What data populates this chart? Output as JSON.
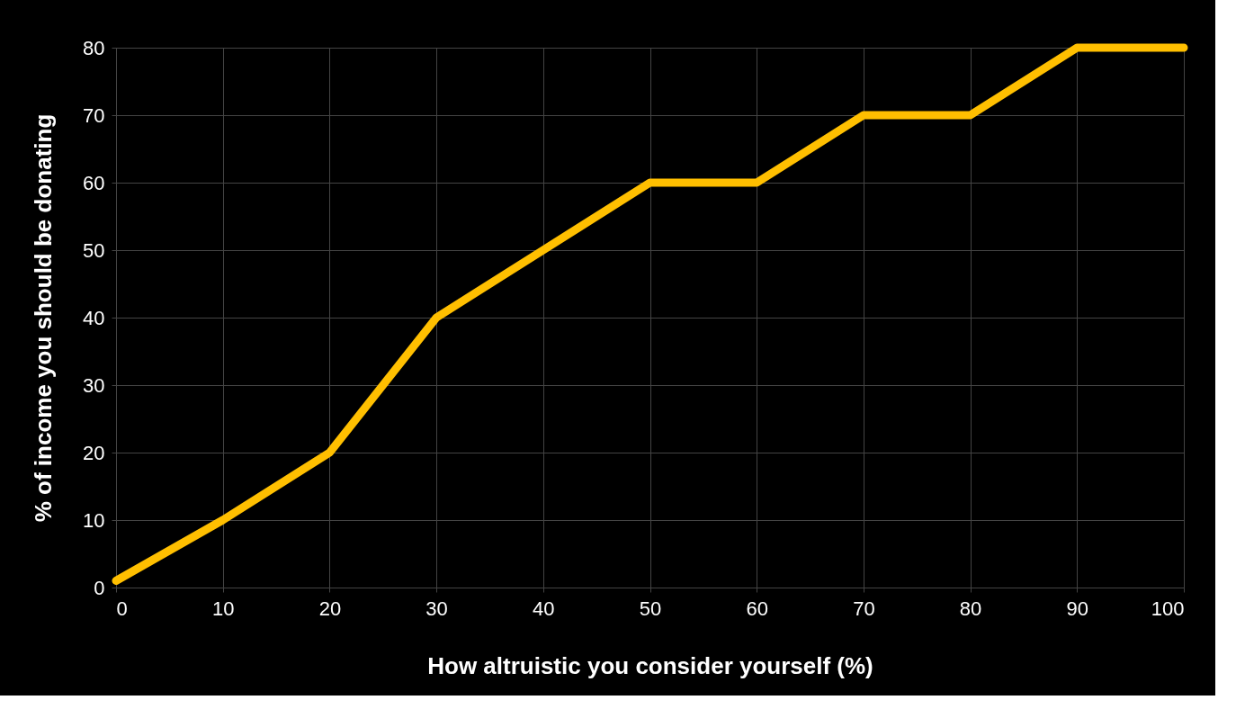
{
  "chart_data": {
    "type": "line",
    "xlabel": "How altruistic you consider yourself (%)",
    "ylabel": "% of income you should be donating",
    "x": [
      0,
      10,
      20,
      30,
      40,
      50,
      60,
      70,
      80,
      90,
      100
    ],
    "series": [
      {
        "color": "#ffbf00",
        "values": [
          1,
          10,
          20,
          40,
          50,
          60,
          60,
          70,
          70,
          80,
          80
        ]
      }
    ],
    "xlim": [
      0,
      100
    ],
    "xticks": [
      0,
      10,
      20,
      30,
      40,
      50,
      60,
      70,
      80,
      90,
      100
    ],
    "ylim": [
      0,
      80
    ],
    "yticks": [
      0,
      10,
      20,
      30,
      40,
      50,
      60,
      70,
      80
    ],
    "grid": true,
    "marker": "none",
    "line_style": "solid"
  }
}
